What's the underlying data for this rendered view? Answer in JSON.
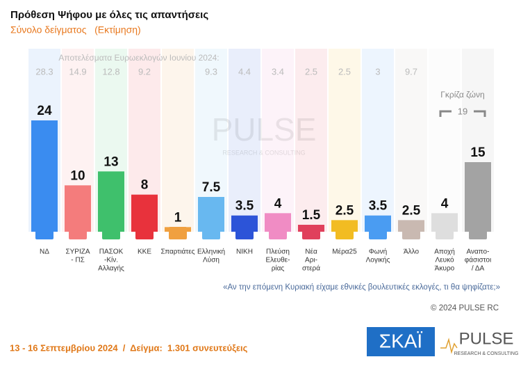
{
  "chart_data": {
    "type": "bar",
    "title": "Πρόθεση Ψήφου με όλες τις απαντήσεις",
    "subtitle": "Σύνολο δείγματος   (Εκτίμηση)",
    "categories": [
      [
        "ΝΔ"
      ],
      [
        "ΣΥΡΙΖΑ",
        "- ΠΣ"
      ],
      [
        "ΠΑΣΟΚ",
        "-Κίν.",
        "Αλλαγής"
      ],
      [
        "ΚΚΕ"
      ],
      [
        "Σπαρτιάτες"
      ],
      [
        "Ελληνική",
        "Λύση"
      ],
      [
        "ΝΙΚΗ"
      ],
      [
        "Πλεύση",
        "Ελευθε-",
        "ρίας"
      ],
      [
        "Νέα",
        "Αρι-",
        "στερά"
      ],
      [
        "Μέρα25"
      ],
      [
        "Φωνή",
        "Λογικής"
      ],
      [
        "Άλλο"
      ],
      [
        "Αποχή",
        "Λευκό",
        "Άκυρο"
      ],
      [
        "Αναπο-",
        "φάσιστοι",
        "/ ΔΑ"
      ]
    ],
    "values": [
      24,
      10,
      13,
      8,
      1,
      7.5,
      3.5,
      4,
      1.5,
      2.5,
      3.5,
      2.5,
      4,
      15
    ],
    "colors": [
      "#3a8cf0",
      "#f47c7c",
      "#3fc06c",
      "#e8323c",
      "#f0a040",
      "#68b8f0",
      "#2c54d8",
      "#f08cc4",
      "#e0405c",
      "#f2bc22",
      "#4a9cf2",
      "#c9b9b1",
      "#dedede",
      "#a3a3a3"
    ],
    "euro_label": "Αποτελέσματα Ευρωεκλογών Ιουνίου 2024:",
    "euro_results": [
      28.3,
      14.9,
      12.8,
      9.2,
      null,
      9.3,
      4.4,
      3.4,
      2.5,
      2.5,
      3,
      9.7,
      null,
      null
    ],
    "grey_zone_label": "Γκρίζα ζώνη",
    "grey_zone_value": 19,
    "question": "«Αν την επόμενη Κυριακή είχαμε εθνικές βουλευτικές εκλογές, τι θα ψηφίζατε;»",
    "copyright": "© 2024 PULSE RC",
    "footer": "13 - 16 Σεπτεμβρίου 2024  /  Δείγμα:  1.301 συνευτεύξεις",
    "watermark": "PULSE",
    "watermark_sub": "RESEARCH & CONSULTING",
    "logo_skai": "ΣΚΑΪ",
    "logo_pulse": "PULSE",
    "logo_pulse_sub": "RESEARCH & CONSULTING"
  }
}
